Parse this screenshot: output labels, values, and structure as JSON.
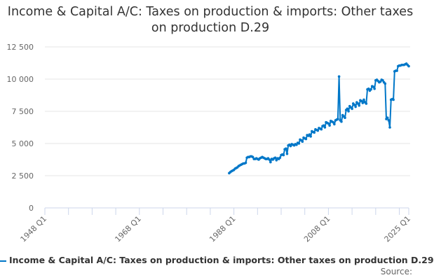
{
  "chart_data": {
    "type": "line",
    "title": "Income & Capital A/C: Taxes on production & imports: Other taxes on production D.29",
    "xlabel": "",
    "ylabel": "",
    "x_range": [
      "1948 Q1",
      "2025 Q1"
    ],
    "x_tick_labels": [
      "1948 Q1",
      "1968 Q1",
      "1988 Q1",
      "2008 Q1",
      "2025 Q1"
    ],
    "ylim": [
      0,
      12500
    ],
    "y_ticks": [
      0,
      2500,
      5000,
      7500,
      10000,
      12500
    ],
    "y_tick_labels": [
      "0",
      "2 500",
      "5 000",
      "7 500",
      "10 000",
      "12 500"
    ],
    "grid": true,
    "legend_placement": "bottom",
    "color": "#0077c8",
    "series": [
      {
        "name": "Income & Capital A/C: Taxes on production & imports: Other taxes on production D.29",
        "start": "1987 Q1",
        "frequency": "quarterly",
        "values": [
          2700,
          2780,
          2850,
          2900,
          2950,
          3050,
          3100,
          3150,
          3250,
          3300,
          3350,
          3400,
          3450,
          3450,
          3500,
          3900,
          3950,
          3950,
          4000,
          4000,
          3950,
          3800,
          3800,
          3850,
          3800,
          3750,
          3850,
          3900,
          3950,
          3900,
          3850,
          3800,
          3800,
          3850,
          3750,
          3550,
          3800,
          3750,
          3850,
          3900,
          3700,
          3850,
          3800,
          3900,
          4100,
          4150,
          4100,
          4550,
          4600,
          4200,
          4850,
          4900,
          4800,
          4950,
          4900,
          4850,
          4950,
          4900,
          5050,
          5000,
          5300,
          5250,
          5150,
          5450,
          5400,
          5350,
          5650,
          5600,
          5700,
          5550,
          5950,
          5900,
          5850,
          6100,
          6050,
          6000,
          6200,
          6150,
          6100,
          6350,
          6400,
          6250,
          6650,
          6600,
          6550,
          6400,
          6750,
          6700,
          6650,
          6500,
          6800,
          6850,
          6900,
          10200,
          6800,
          6700,
          7200,
          7100,
          7000,
          7600,
          7700,
          7500,
          7900,
          7800,
          7700,
          8100,
          8000,
          7850,
          8200,
          8100,
          7950,
          8350,
          8300,
          8150,
          8400,
          8200,
          8100,
          9200,
          9250,
          9100,
          9200,
          9450,
          9400,
          9250,
          9900,
          9950,
          9850,
          9750,
          9800,
          9950,
          9900,
          9750,
          9650,
          6900,
          7000,
          6800,
          6250,
          8400,
          8450,
          8400,
          10600,
          10650,
          10650,
          11000,
          11050,
          11050,
          11100,
          11100,
          11100,
          11150,
          11200,
          11100,
          11000
        ]
      }
    ]
  },
  "source_label": "Source:"
}
